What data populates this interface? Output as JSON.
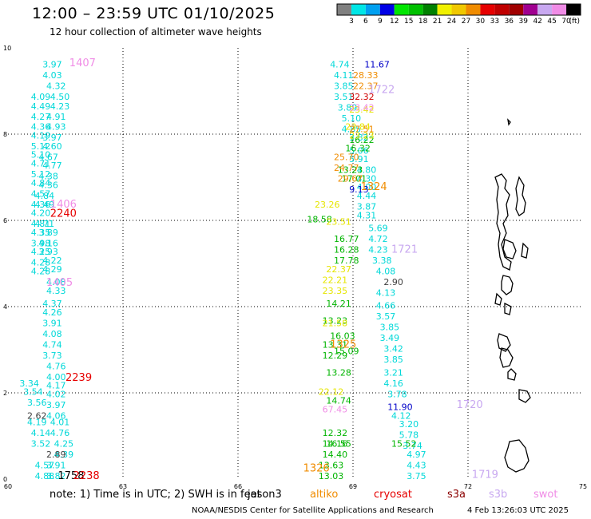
{
  "header": {
    "title": "12:00 – 23:59 UTC 01/10/2025",
    "subtitle": "12 hour collection of altimeter wave heights"
  },
  "footer": {
    "note": "note: 1) Time is in UTC; 2) SWH is in feet",
    "credit": "NOAA/NESDIS Center for Satellite Applications and Research",
    "timestamp": "4 Feb 13:26:03 UTC 2025",
    "satellites": [
      {
        "name": "jason3",
        "color": "#000000"
      },
      {
        "name": "altiko",
        "color": "#f08c00"
      },
      {
        "name": "cryosat",
        "color": "#e60000"
      },
      {
        "name": "s3a",
        "color": "#8b0000"
      },
      {
        "name": "s3b",
        "color": "#c8a8f0"
      },
      {
        "name": "swot",
        "color": "#f08ce6"
      }
    ]
  },
  "legend": {
    "unit": "(ft)",
    "labels": [
      "3",
      "6",
      "9",
      "12",
      "15",
      "18",
      "21",
      "24",
      "27",
      "30",
      "33",
      "36",
      "39",
      "42",
      "45",
      "70"
    ],
    "colors": [
      "#808080",
      "#00e6e6",
      "#00a0f0",
      "#0000e6",
      "#00e600",
      "#00c000",
      "#008000",
      "#f0f000",
      "#f0c800",
      "#f08c00",
      "#e60000",
      "#c00000",
      "#a00000",
      "#a00090",
      "#c8a8f0",
      "#f08ce6",
      "#000000"
    ]
  },
  "chart_data": {
    "type": "scatter",
    "title": "12:00 – 23:59 UTC 01/10/2025",
    "xlim": [
      60,
      75
    ],
    "ylim": [
      0,
      10
    ],
    "xticks": [
      60,
      63,
      66,
      69,
      72,
      75
    ],
    "yticks": [
      0,
      2,
      4,
      6,
      8,
      10
    ],
    "grid": true,
    "time_labels": [
      {
        "text": "1407",
        "x": 61.6,
        "y": 9.57,
        "color": "#f08ce6"
      },
      {
        "text": "1406",
        "x": 61.1,
        "y": 6.3,
        "color": "#f08ce6"
      },
      {
        "text": "2240",
        "x": 61.1,
        "y": 6.08,
        "color": "#e60000"
      },
      {
        "text": "1405",
        "x": 61.0,
        "y": 4.48,
        "color": "#f08ce6"
      },
      {
        "text": "2239",
        "x": 61.5,
        "y": 2.28,
        "color": "#e60000"
      },
      {
        "text": "1758",
        "x": 61.3,
        "y": 0.0,
        "color": "#000000"
      },
      {
        "text": "2238",
        "x": 61.7,
        "y": 0.0,
        "color": "#e60000"
      },
      {
        "text": "1324",
        "x": 69.2,
        "y": 6.7,
        "color": "#f08c00"
      },
      {
        "text": "1325",
        "x": 68.4,
        "y": 3.05,
        "color": "#f08c00"
      },
      {
        "text": "1326",
        "x": 67.7,
        "y": 0.18,
        "color": "#f08c00"
      },
      {
        "text": "1722",
        "x": 69.4,
        "y": 8.95,
        "color": "#c8a8f0"
      },
      {
        "text": "1721",
        "x": 70.0,
        "y": 5.25,
        "color": "#c8a8f0"
      },
      {
        "text": "1720",
        "x": 71.7,
        "y": 1.65,
        "color": "#c8a8f0"
      },
      {
        "text": "1719",
        "x": 72.1,
        "y": 0.03,
        "color": "#c8a8f0"
      }
    ],
    "series": [
      {
        "name": "cyan",
        "color": "#00d8d8",
        "points": [
          [
            60.9,
            9.55,
            "3.97"
          ],
          [
            60.9,
            9.3,
            "4.03"
          ],
          [
            61.0,
            9.05,
            "4.32"
          ],
          [
            60.6,
            8.8,
            "4.09"
          ],
          [
            61.1,
            8.8,
            "4.50"
          ],
          [
            60.6,
            8.57,
            "4.49"
          ],
          [
            61.1,
            8.57,
            "4.23"
          ],
          [
            60.6,
            8.33,
            "4.27"
          ],
          [
            61.0,
            8.33,
            "4.91"
          ],
          [
            60.6,
            8.1,
            "4.36"
          ],
          [
            61.0,
            8.1,
            "4.93"
          ],
          [
            60.6,
            7.9,
            "4.19"
          ],
          [
            60.9,
            7.85,
            "3.97"
          ],
          [
            60.6,
            7.65,
            "5.12"
          ],
          [
            60.9,
            7.65,
            "4.60"
          ],
          [
            60.6,
            7.45,
            "5.10"
          ],
          [
            60.8,
            7.4,
            "4.67"
          ],
          [
            60.6,
            7.25,
            "4.71"
          ],
          [
            60.9,
            7.2,
            "4.77"
          ],
          [
            60.6,
            7.0,
            "5.12"
          ],
          [
            60.8,
            6.95,
            "4.38"
          ],
          [
            60.6,
            6.8,
            "4.84"
          ],
          [
            60.8,
            6.75,
            "4.36"
          ],
          [
            60.6,
            6.55,
            "4.57"
          ],
          [
            60.7,
            6.5,
            "4.84"
          ],
          [
            60.6,
            6.3,
            "4.36"
          ],
          [
            60.7,
            6.3,
            "4.49"
          ],
          [
            60.6,
            6.1,
            "4.20"
          ],
          [
            60.6,
            5.85,
            "4.81"
          ],
          [
            60.7,
            5.85,
            "4.71"
          ],
          [
            60.6,
            5.65,
            "4.35"
          ],
          [
            60.8,
            5.65,
            "3.89"
          ],
          [
            60.6,
            5.4,
            "3.98"
          ],
          [
            60.8,
            5.4,
            "4.16"
          ],
          [
            60.6,
            5.2,
            "4.25"
          ],
          [
            60.8,
            5.2,
            "3.93"
          ],
          [
            60.6,
            4.95,
            "4.28"
          ],
          [
            60.9,
            5.0,
            "4.22"
          ],
          [
            60.6,
            4.75,
            "4.28"
          ],
          [
            60.9,
            4.8,
            "4.29"
          ],
          [
            61.0,
            4.5,
            "4.08"
          ],
          [
            61.0,
            4.3,
            "4.33"
          ],
          [
            60.9,
            4.0,
            "4.37"
          ],
          [
            60.9,
            3.8,
            "4.26"
          ],
          [
            60.9,
            3.55,
            "3.91"
          ],
          [
            60.9,
            3.3,
            "4.08"
          ],
          [
            60.9,
            3.05,
            "4.74"
          ],
          [
            60.9,
            2.8,
            "3.73"
          ],
          [
            61.0,
            2.55,
            "4.76"
          ],
          [
            61.0,
            2.3,
            "4.00"
          ],
          [
            61.0,
            2.1,
            "4.17"
          ],
          [
            60.3,
            2.15,
            "3.34"
          ],
          [
            60.4,
            1.95,
            "3.54"
          ],
          [
            61.0,
            1.9,
            "4.02"
          ],
          [
            60.5,
            1.7,
            "3.56"
          ],
          [
            61.0,
            1.65,
            "3.97"
          ],
          [
            61.0,
            1.4,
            "4.06"
          ],
          [
            60.5,
            1.25,
            "4.19"
          ],
          [
            61.1,
            1.25,
            "4.01"
          ],
          [
            60.6,
            1.0,
            "4.14"
          ],
          [
            61.1,
            1.0,
            "4.76"
          ],
          [
            60.6,
            0.75,
            "3.52"
          ],
          [
            61.2,
            0.75,
            "4.25"
          ],
          [
            61.2,
            0.5,
            "4.39"
          ],
          [
            60.7,
            0.25,
            "4.57"
          ],
          [
            61.0,
            0.25,
            "3.91"
          ],
          [
            60.7,
            0.0,
            "4.88"
          ],
          [
            61.0,
            0.0,
            "3.82"
          ],
          [
            68.4,
            9.55,
            "4.74"
          ],
          [
            68.5,
            9.3,
            "4.11"
          ],
          [
            68.5,
            9.05,
            "3.85"
          ],
          [
            68.5,
            8.8,
            "3.51"
          ],
          [
            68.6,
            8.55,
            "3.89"
          ],
          [
            68.7,
            8.3,
            "5.10"
          ],
          [
            68.7,
            8.05,
            "4.85"
          ],
          [
            68.9,
            7.85,
            "3.82"
          ],
          [
            68.9,
            7.55,
            "5.06"
          ],
          [
            68.9,
            7.35,
            "5.91"
          ],
          [
            69.1,
            7.1,
            "4.80"
          ],
          [
            69.1,
            6.9,
            "4.30"
          ],
          [
            69.1,
            6.7,
            "4.00"
          ],
          [
            69.1,
            6.5,
            "4.44"
          ],
          [
            69.1,
            6.25,
            "3.87"
          ],
          [
            69.1,
            6.05,
            "4.31"
          ],
          [
            69.4,
            5.75,
            "5.69"
          ],
          [
            69.4,
            5.5,
            "4.72"
          ],
          [
            69.4,
            5.25,
            "4.23"
          ],
          [
            69.5,
            5.0,
            "3.38"
          ],
          [
            69.6,
            4.75,
            "4.08"
          ],
          [
            69.6,
            4.25,
            "4.13"
          ],
          [
            69.6,
            3.95,
            "4.66"
          ],
          [
            69.6,
            3.7,
            "3.57"
          ],
          [
            69.7,
            3.45,
            "3.85"
          ],
          [
            69.7,
            3.2,
            "3.49"
          ],
          [
            69.8,
            2.95,
            "3.42"
          ],
          [
            69.8,
            2.7,
            "3.85"
          ],
          [
            69.8,
            2.4,
            "3.21"
          ],
          [
            69.8,
            2.15,
            "4.16"
          ],
          [
            69.9,
            1.9,
            "3.78"
          ],
          [
            70.0,
            1.4,
            "4.12"
          ],
          [
            70.2,
            1.2,
            "3.20"
          ],
          [
            70.2,
            0.95,
            "5.78"
          ],
          [
            70.3,
            0.7,
            "3.74"
          ],
          [
            70.4,
            0.0,
            "3.75"
          ],
          [
            70.4,
            0.25,
            "4.43"
          ],
          [
            70.4,
            0.5,
            "4.97"
          ]
        ]
      },
      {
        "name": "green",
        "color": "#00b400",
        "points": [
          [
            68.5,
            2.9,
            "15.09"
          ],
          [
            68.7,
            6.9,
            "17.01"
          ],
          [
            68.5,
            5.5,
            "16.77"
          ],
          [
            68.5,
            5.25,
            "16.28"
          ],
          [
            68.5,
            5.0,
            "17.78"
          ],
          [
            68.4,
            3.25,
            "16.03"
          ],
          [
            68.3,
            0.75,
            "16.55"
          ],
          [
            68.3,
            4.0,
            "14.21"
          ],
          [
            68.8,
            7.6,
            "16.32"
          ],
          [
            68.9,
            7.8,
            "16.22"
          ],
          [
            67.8,
            5.95,
            "18.58"
          ],
          [
            68.6,
            7.1,
            "13.23"
          ],
          [
            68.3,
            2.4,
            "13.28"
          ],
          [
            68.2,
            3.6,
            "13.23"
          ],
          [
            68.2,
            2.8,
            "12.29"
          ],
          [
            68.3,
            1.75,
            "14.74"
          ],
          [
            68.1,
            0.25,
            "13.63"
          ],
          [
            68.2,
            0.5,
            "14.40"
          ],
          [
            68.2,
            1.0,
            "12.32"
          ],
          [
            68.2,
            0.75,
            "14.16"
          ],
          [
            68.1,
            0.0,
            "13.03"
          ],
          [
            68.2,
            3.05,
            "13.31"
          ],
          [
            70.0,
            0.75,
            "15.52"
          ]
        ]
      },
      {
        "name": "yellow",
        "color": "#e6e600",
        "points": [
          [
            68.0,
            6.3,
            "23.26"
          ],
          [
            68.3,
            5.9,
            "23.51"
          ],
          [
            68.3,
            4.8,
            "22.37"
          ],
          [
            68.2,
            4.55,
            "22.21"
          ],
          [
            68.2,
            4.3,
            "23.35"
          ],
          [
            68.2,
            3.55,
            "21.58"
          ],
          [
            68.1,
            1.95,
            "22.12"
          ],
          [
            68.9,
            8.5,
            "23.42"
          ],
          [
            68.8,
            8.1,
            "23.84"
          ],
          [
            68.9,
            7.9,
            "23.23"
          ]
        ]
      },
      {
        "name": "orange",
        "color": "#f08c00",
        "points": [
          [
            69.0,
            9.3,
            "28.33"
          ],
          [
            69.0,
            9.05,
            "22.37"
          ],
          [
            68.9,
            8.05,
            "27.51"
          ],
          [
            68.5,
            7.4,
            "25.70"
          ],
          [
            68.5,
            7.15,
            "24.77"
          ],
          [
            68.6,
            6.9,
            "29.67"
          ]
        ]
      },
      {
        "name": "red",
        "color": "#d00000",
        "points": [
          [
            68.9,
            8.8,
            "32.32"
          ]
        ]
      },
      {
        "name": "blue",
        "color": "#0000c8",
        "points": [
          [
            69.3,
            9.55,
            "11.67"
          ],
          [
            68.9,
            6.65,
            "9.13"
          ],
          [
            69.9,
            1.6,
            "11.90"
          ]
        ]
      },
      {
        "name": "pink",
        "color": "#f08ce6",
        "points": [
          [
            68.2,
            1.55,
            "67.45"
          ],
          [
            68.9,
            8.55,
            "23.42"
          ]
        ]
      },
      {
        "name": "gray",
        "color": "#404040",
        "points": [
          [
            60.5,
            1.4,
            "2.62"
          ],
          [
            61.0,
            0.5,
            "2.89"
          ],
          [
            69.8,
            4.5,
            "2.90"
          ]
        ]
      }
    ]
  }
}
